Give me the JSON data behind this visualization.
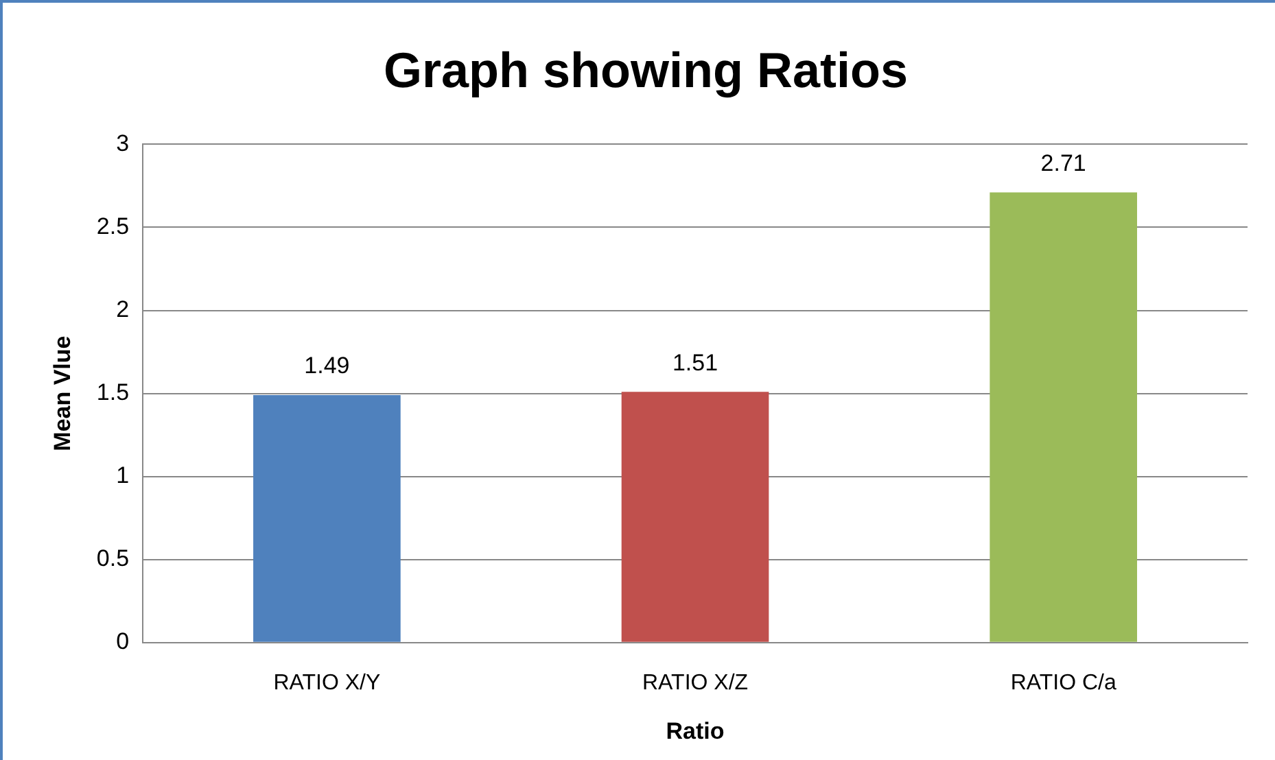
{
  "chart_data": {
    "type": "bar",
    "title": "Graph showing Ratios",
    "xlabel": "Ratio",
    "ylabel": "Mean Vlue",
    "categories": [
      "RATIO X/Y",
      "RATIO X/Z",
      "RATIO C/a"
    ],
    "values": [
      1.49,
      1.51,
      2.71
    ],
    "colors": [
      "#4f81bd",
      "#c0504d",
      "#9bbb59"
    ],
    "ylim": [
      0,
      3
    ],
    "yticks": [
      0,
      0.5,
      1,
      1.5,
      2,
      2.5,
      3
    ],
    "grid": "y",
    "data_labels": true,
    "legend": false
  }
}
